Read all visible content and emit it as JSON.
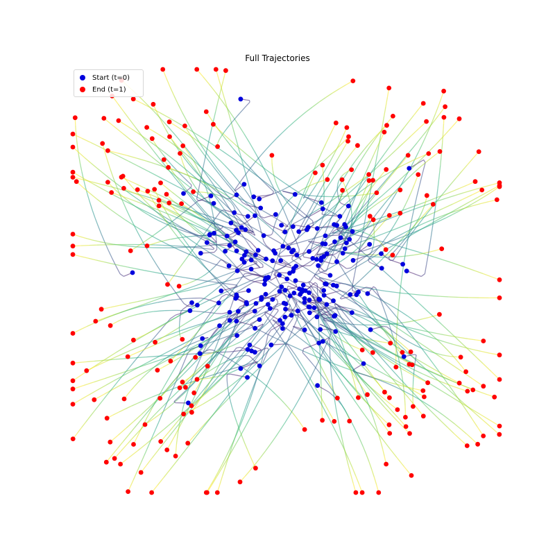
{
  "chart_data": {
    "type": "scatter",
    "title": "Full Trajectories",
    "xlabel": "",
    "ylabel": "",
    "grid": false,
    "axes_visible": false,
    "legend_position": "top-left",
    "series": [
      {
        "name": "Start (t=0)",
        "marker_color": "#0000dd"
      },
      {
        "name": "End (t=1)",
        "marker_color": "#ff0000"
      }
    ],
    "trajectory_colormap": "viridis",
    "n_trajectories": 200,
    "pattern": "four-arm X shaped flow diverging from the center toward the four diagonal corners"
  }
}
